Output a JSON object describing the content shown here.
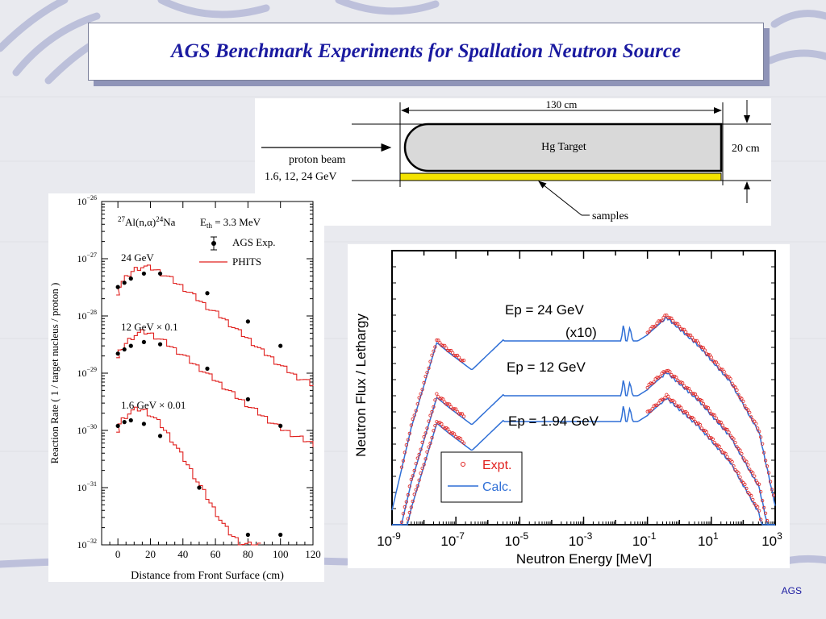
{
  "slide": {
    "title": "AGS Benchmark Experiments for Spallation Neutron Source",
    "footer": "AGS"
  },
  "diagram": {
    "length_label": "130 cm",
    "height_label": "20 cm",
    "target_label": "Hg Target",
    "beam_label": "proton beam",
    "beam_energies": "1.6, 12, 24 GeV",
    "samples_label": "samples"
  },
  "colors": {
    "red": "#e0201e",
    "blue": "#2f6fd6",
    "sample": "#f4e300",
    "title": "#1a1aa0"
  },
  "chart_data": [
    {
      "type": "line",
      "title": "",
      "reaction_main": "Al(n,α)",
      "reaction_mass_a": "27",
      "reaction_mass_b": "24",
      "reaction_product": "Na",
      "threshold_label": "E",
      "threshold_sub": "th",
      "threshold_value": " = 3.3 MeV",
      "xlabel": "Distance from Front Surface (cm)",
      "ylabel": "Reaction Rate ( 1 / target nucleus / proton )",
      "xlim": [
        -10,
        120
      ],
      "ylim_log10": [
        -32,
        -26
      ],
      "x_ticks": [
        "0",
        "20",
        "40",
        "60",
        "80",
        "100",
        "120"
      ],
      "y_tick_base": "10",
      "y_tick_exps": [
        "−26",
        "−27",
        "−28",
        "−29",
        "−30",
        "−31",
        "−32"
      ],
      "legend": {
        "exp": "AGS Exp.",
        "calc": "PHITS"
      },
      "series": [
        {
          "label": "24 GeV",
          "exp_x": [
            0,
            4,
            8,
            16,
            26,
            55,
            80,
            100
          ],
          "exp_y": [
            3.2e-28,
            3.8e-28,
            4.5e-28,
            5.5e-28,
            5.5e-28,
            2.5e-28,
            8e-29,
            3e-29
          ],
          "calc_x": [
            -1,
            0,
            2,
            4,
            6,
            8,
            10,
            12,
            14,
            16,
            18,
            20,
            22,
            24,
            26,
            28,
            30,
            32,
            34,
            36,
            38,
            40,
            42,
            44,
            46,
            48,
            50,
            52,
            54,
            56,
            58,
            60,
            62,
            64,
            66,
            68,
            70,
            72,
            74,
            76,
            78,
            80,
            82,
            84,
            86,
            88,
            90,
            92,
            94,
            96,
            98,
            100,
            102,
            104,
            106,
            108,
            110,
            112,
            114,
            116,
            118,
            120
          ],
          "calc_y": [
            2.6e-28,
            3.3e-28,
            3.9e-28,
            4.6e-28,
            5.3e-28,
            6e-28,
            6.6e-28,
            7e-28,
            7.2e-28,
            7.2e-28,
            7e-28,
            6.8e-28,
            6.4e-28,
            6e-28,
            5.6e-28,
            5.2e-28,
            4.8e-28,
            4.4e-28,
            4e-28,
            3.6e-28,
            3.3e-28,
            3e-28,
            2.7e-28,
            2.5e-28,
            2.2e-28,
            2e-28,
            1.8e-28,
            1.6e-28,
            1.45e-28,
            1.3e-28,
            1.2e-28,
            1.1e-28,
            1e-28,
            9e-29,
            8e-29,
            7.2e-29,
            6.5e-29,
            5.8e-29,
            5.2e-29,
            4.7e-29,
            4.2e-29,
            3.8e-29,
            3.4e-29,
            3e-29,
            2.7e-29,
            2.4e-29,
            2.2e-29,
            2e-29,
            1.8e-29,
            1.6e-29,
            1.45e-29,
            1.3e-29,
            1.2e-29,
            1.1e-29,
            1e-29,
            9e-30,
            8.5e-30,
            8e-30,
            7.5e-30,
            7e-30,
            6.5e-30,
            6.2e-30
          ]
        },
        {
          "label": "12 GeV × 0.1",
          "exp_x": [
            0,
            4,
            8,
            16,
            26,
            55,
            80,
            100
          ],
          "exp_y": [
            2.2e-29,
            2.6e-29,
            3e-29,
            3.5e-29,
            3.2e-29,
            1.2e-29,
            3.5e-30,
            1.2e-30
          ],
          "calc_x": [
            -1,
            0,
            2,
            4,
            6,
            8,
            10,
            12,
            14,
            16,
            18,
            20,
            22,
            24,
            26,
            28,
            30,
            32,
            34,
            36,
            38,
            40,
            42,
            44,
            46,
            48,
            50,
            52,
            54,
            56,
            58,
            60,
            62,
            64,
            66,
            68,
            70,
            72,
            74,
            76,
            78,
            80,
            82,
            84,
            86,
            88,
            90,
            92,
            94,
            96,
            98,
            100,
            102,
            104,
            106,
            108,
            110,
            112,
            114,
            116,
            118,
            120
          ],
          "calc_y": [
            1.8e-29,
            2.3e-29,
            2.8e-29,
            3.3e-29,
            3.8e-29,
            4.3e-29,
            4.7e-29,
            5e-29,
            5.2e-29,
            5.2e-29,
            5e-29,
            4.7e-29,
            4.4e-29,
            4.1e-29,
            3.8e-29,
            3.5e-29,
            3.2e-29,
            2.9e-29,
            2.6e-29,
            2.4e-29,
            2.2e-29,
            2e-29,
            1.8e-29,
            1.6e-29,
            1.45e-29,
            1.3e-29,
            1.2e-29,
            1.08e-29,
            9.7e-30,
            8.8e-30,
            8e-30,
            7.2e-30,
            6.5e-30,
            5.9e-30,
            5.3e-30,
            4.8e-30,
            4.3e-30,
            3.9e-30,
            3.5e-30,
            3.2e-30,
            2.9e-30,
            2.6e-30,
            2.4e-30,
            2.2e-30,
            2e-30,
            1.8e-30,
            1.65e-30,
            1.5e-30,
            1.38e-30,
            1.26e-30,
            1.16e-30,
            1.07e-30,
            1e-30,
            9.3e-31,
            8.7e-31,
            8.1e-31,
            7.6e-31,
            7.2e-31,
            6.8e-31,
            6.4e-31,
            6e-31,
            5.7e-31
          ]
        },
        {
          "label": "1.6 GeV × 0.01",
          "exp_x": [
            0,
            4,
            8,
            16,
            26,
            50,
            80,
            100
          ],
          "exp_y": [
            1.2e-30,
            1.4e-30,
            1.5e-30,
            1.3e-30,
            8e-31,
            1e-31,
            1.5e-32,
            1.5e-32
          ],
          "calc_x": [
            -1,
            0,
            2,
            4,
            6,
            8,
            10,
            12,
            14,
            16,
            18,
            20,
            22,
            24,
            26,
            28,
            30,
            32,
            34,
            36,
            38,
            40,
            42,
            44,
            46,
            48,
            50,
            52,
            54,
            56,
            58,
            60,
            62,
            64,
            66,
            68,
            70,
            72,
            74,
            76,
            78,
            80,
            82,
            84,
            86
          ],
          "calc_y": [
            1e-30,
            1.3e-30,
            1.55e-30,
            1.8e-30,
            2e-30,
            2.2e-30,
            2.3e-30,
            2.35e-30,
            2.3e-30,
            2.2e-30,
            2e-30,
            1.8e-30,
            1.6e-30,
            1.4e-30,
            1.2e-30,
            1e-30,
            8.5e-31,
            7e-31,
            5.8e-31,
            4.7e-31,
            3.8e-31,
            3.1e-31,
            2.5e-31,
            2e-31,
            1.6e-31,
            1.3e-31,
            1.05e-31,
            8.4e-32,
            6.7e-32,
            5.4e-32,
            4.3e-32,
            3.5e-32,
            2.8e-32,
            2.3e-32,
            1.9e-32,
            1.6e-32,
            1.4e-32,
            1.25e-32,
            1.1e-32,
            1.05e-32,
            1.02e-32,
            1.01e-32,
            1e-32,
            1e-32,
            1e-32
          ]
        }
      ]
    },
    {
      "type": "line",
      "title": "",
      "xlabel": "Neutron Energy  [MeV]",
      "ylabel": "Neutron Flux / Lethargy",
      "x_scale": "log",
      "xlim": [
        1e-09,
        1000
      ],
      "x_tick_base": "10",
      "x_tick_exps": [
        "-9",
        "-7",
        "-5",
        "-3",
        "-1",
        "1",
        "3"
      ],
      "y_ticks": "none (arbitrary units)",
      "legend": {
        "expt": "Expt.",
        "calc": "Calc."
      },
      "series": [
        {
          "label": "Ep = 24 GeV",
          "note": "(x10)",
          "plateau": 0.78,
          "shape": "spallation"
        },
        {
          "label": "Ep = 12 GeV",
          "note": "",
          "plateau": 0.88,
          "shape": "spallation"
        },
        {
          "label": "Ep = 1.94 GeV",
          "note": "",
          "plateau": 0.96,
          "shape": "spallation"
        }
      ]
    }
  ]
}
